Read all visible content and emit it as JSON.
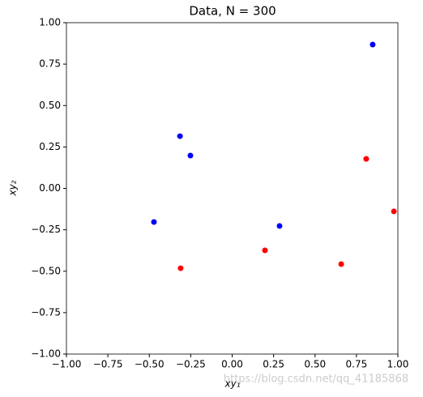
{
  "chart_data": {
    "type": "scatter",
    "title": "Data, N = 300",
    "xlabel": "xy₁",
    "ylabel": "xy₂",
    "series": [
      {
        "color": "#0000ff",
        "x": [
          0.848,
          -0.315,
          -0.252,
          -0.472,
          0.286
        ],
        "y": [
          0.868,
          0.315,
          0.198,
          -0.203,
          -0.227
        ]
      },
      {
        "color": "#ff0000",
        "x": [
          0.809,
          0.976,
          0.198,
          0.658,
          -0.311
        ],
        "y": [
          0.178,
          -0.139,
          -0.374,
          -0.457,
          -0.482
        ]
      }
    ],
    "xlim": [
      -1,
      1
    ],
    "ylim": [
      -1,
      1
    ],
    "xticks": [
      {
        "value": -1,
        "label": "−1.00"
      },
      {
        "value": -0.75,
        "label": "−0.75"
      },
      {
        "value": -0.5,
        "label": "−0.50"
      },
      {
        "value": -0.25,
        "label": "−0.25"
      },
      {
        "value": 0,
        "label": "0.00"
      },
      {
        "value": 0.25,
        "label": "0.25"
      },
      {
        "value": 0.5,
        "label": "0.50"
      },
      {
        "value": 0.75,
        "label": "0.75"
      },
      {
        "value": 1,
        "label": "1.00"
      }
    ],
    "yticks": [
      {
        "value": -1,
        "label": "−1.00"
      },
      {
        "value": -0.75,
        "label": "−0.75"
      },
      {
        "value": -0.5,
        "label": "−0.50"
      },
      {
        "value": -0.25,
        "label": "−0.25"
      },
      {
        "value": 0,
        "label": "0.00"
      },
      {
        "value": 0.25,
        "label": "0.25"
      },
      {
        "value": 0.5,
        "label": "0.50"
      },
      {
        "value": 0.75,
        "label": "0.75"
      },
      {
        "value": 1,
        "label": "1.00"
      }
    ],
    "watermark": "https://blog.csdn.net/qq_41185868"
  }
}
